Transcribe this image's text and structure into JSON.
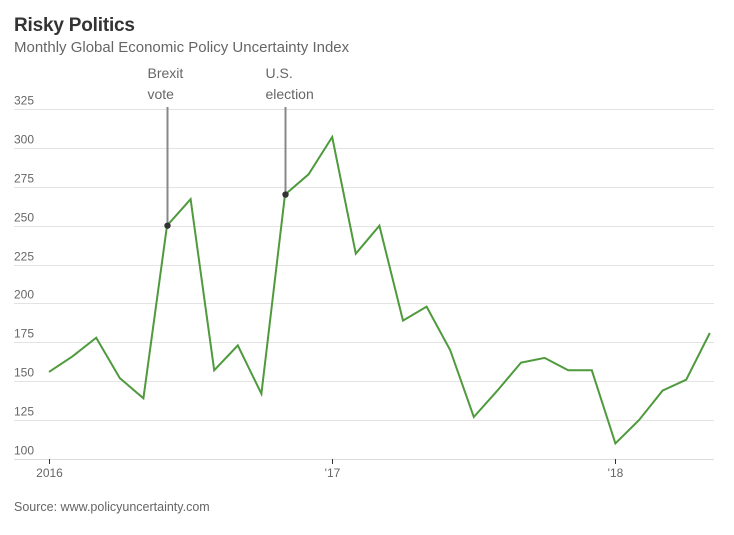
{
  "header": {
    "title": "Risky Politics",
    "subtitle": "Monthly Global Economic Policy Uncertainty Index"
  },
  "source": "Source: www.policyuncertainty.com",
  "colors": {
    "line": "#4e9a3d",
    "annotation_line": "#888888",
    "annotation_dot": "#333333",
    "grid": "#e3e3e3",
    "text": "#666666",
    "title": "#333333"
  },
  "chart_data": {
    "type": "line",
    "title": "Risky Politics",
    "subtitle": "Monthly Global Economic Policy Uncertainty Index",
    "xlabel": "",
    "ylabel": "",
    "ylim": [
      100,
      325
    ],
    "yticks": [
      100,
      125,
      150,
      175,
      200,
      225,
      250,
      275,
      300,
      325
    ],
    "grid": true,
    "x_start": "2016-01",
    "x_end": "2018-05",
    "xticks": [
      {
        "month_index": 0,
        "label": "2016"
      },
      {
        "month_index": 12,
        "label": "'17"
      },
      {
        "month_index": 24,
        "label": "'18"
      }
    ],
    "x": [
      "2016-01",
      "2016-02",
      "2016-03",
      "2016-04",
      "2016-05",
      "2016-06",
      "2016-07",
      "2016-08",
      "2016-09",
      "2016-10",
      "2016-11",
      "2016-12",
      "2017-01",
      "2017-02",
      "2017-03",
      "2017-04",
      "2017-05",
      "2017-06",
      "2017-07",
      "2017-08",
      "2017-09",
      "2017-10",
      "2017-11",
      "2017-12",
      "2018-01",
      "2018-02",
      "2018-03",
      "2018-04",
      "2018-05"
    ],
    "series": [
      {
        "name": "Global Economic Policy Uncertainty Index",
        "values": [
          156,
          166,
          178,
          152,
          139,
          250,
          267,
          157,
          173,
          142,
          270,
          283,
          307,
          232,
          250,
          189,
          198,
          170,
          127,
          144,
          162,
          165,
          157,
          157,
          110,
          125,
          144,
          151,
          181
        ]
      }
    ],
    "annotations": [
      {
        "month_index": 5,
        "lines": [
          "Brexit",
          "vote"
        ]
      },
      {
        "month_index": 10,
        "lines": [
          "U.S.",
          "election"
        ]
      }
    ],
    "source": "Source: www.policyuncertainty.com"
  }
}
